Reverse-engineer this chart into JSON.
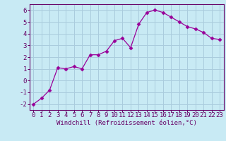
{
  "x": [
    0,
    1,
    2,
    3,
    4,
    5,
    6,
    7,
    8,
    9,
    10,
    11,
    12,
    13,
    14,
    15,
    16,
    17,
    18,
    19,
    20,
    21,
    22,
    23
  ],
  "y": [
    -2.0,
    -1.5,
    -0.8,
    1.1,
    1.0,
    1.2,
    1.0,
    2.2,
    2.2,
    2.5,
    3.4,
    3.6,
    2.8,
    4.8,
    5.8,
    6.0,
    5.8,
    5.4,
    5.0,
    4.6,
    4.4,
    4.1,
    3.6,
    3.5
  ],
  "line_color": "#990099",
  "marker": "D",
  "marker_size": 2.5,
  "bg_color": "#c8eaf4",
  "grid_color": "#aaccdd",
  "xlabel": "Windchill (Refroidissement éolien,°C)",
  "xlim": [
    -0.5,
    23.5
  ],
  "ylim": [
    -2.5,
    6.5
  ],
  "yticks": [
    -2,
    -1,
    0,
    1,
    2,
    3,
    4,
    5,
    6
  ],
  "xticks": [
    0,
    1,
    2,
    3,
    4,
    5,
    6,
    7,
    8,
    9,
    10,
    11,
    12,
    13,
    14,
    15,
    16,
    17,
    18,
    19,
    20,
    21,
    22,
    23
  ],
  "axis_color": "#660066",
  "tick_color": "#660066",
  "xlabel_color": "#660066",
  "xlabel_fontsize": 6.5,
  "tick_fontsize": 6.5
}
